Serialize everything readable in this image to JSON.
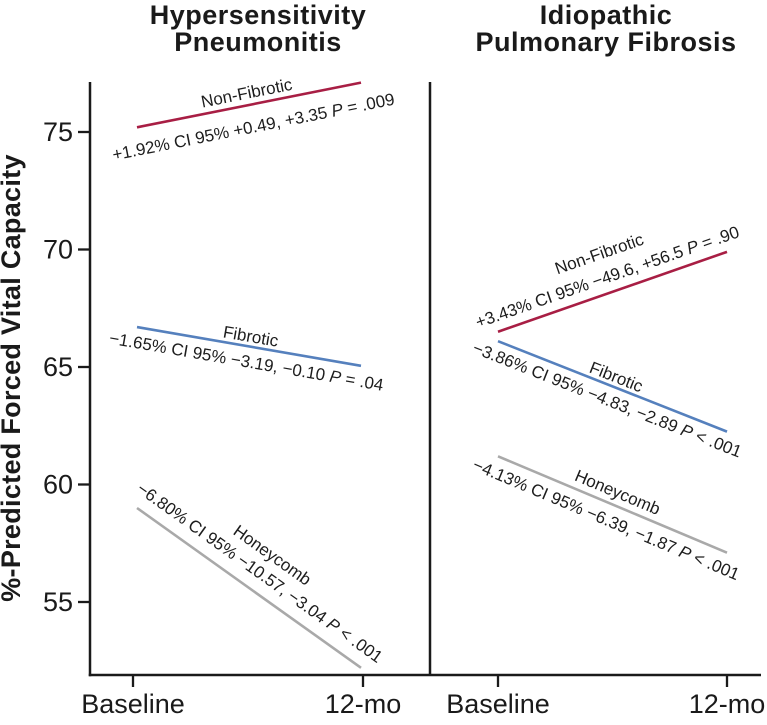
{
  "chart_data": {
    "type": "line",
    "x_categories": [
      "Baseline",
      "12-mo"
    ],
    "ylabel": "%-Predicted Forced Vital Capacity",
    "yticks": [
      75,
      70,
      65,
      60,
      55
    ],
    "ylim": [
      51.9,
      77.2
    ],
    "grid": false,
    "legend_position": "inline-labels",
    "axis_color": "#1a1a1a",
    "text_color": "#1d1d1d",
    "panels": [
      {
        "title_line1": "Hypersensitivity",
        "title_line2": "Pneumonitis",
        "series": [
          {
            "name": "Non-Fibrotic",
            "color": "#a81e44",
            "values": [
              75.2,
              77.1
            ],
            "ci": "+1.92% CI 95% +0.49, +3.35",
            "p": "= .009"
          },
          {
            "name": "Fibrotic",
            "color": "#5580bd",
            "values": [
              66.7,
              65.05
            ],
            "ci": "−1.65% CI 95% −3.19, −0.10",
            "p": "= .04"
          },
          {
            "name": "Honeycomb",
            "color": "#a9a9a9",
            "values": [
              59.0,
              52.2
            ],
            "ci": "−6.80% CI 95% −10.57, −3.04",
            "p": "< .001"
          }
        ]
      },
      {
        "title_line1": "Idiopathic",
        "title_line2": "Pulmonary Fibrosis",
        "series": [
          {
            "name": "Non-Fibrotic",
            "color": "#a81e44",
            "values": [
              66.5,
              69.9
            ],
            "ci": "+3.43% CI 95% −49.6, +56.5",
            "p": "= .90"
          },
          {
            "name": "Fibrotic",
            "color": "#5580bd",
            "values": [
              66.1,
              62.25
            ],
            "ci": "−3.86% CI 95% −4.83, −2.89",
            "p": "< .001"
          },
          {
            "name": "Honeycomb",
            "color": "#a9a9a9",
            "values": [
              61.2,
              57.1
            ],
            "ci": "−4.13% CI 95% −6.39, −1.87",
            "p": "< .001"
          }
        ]
      }
    ]
  }
}
